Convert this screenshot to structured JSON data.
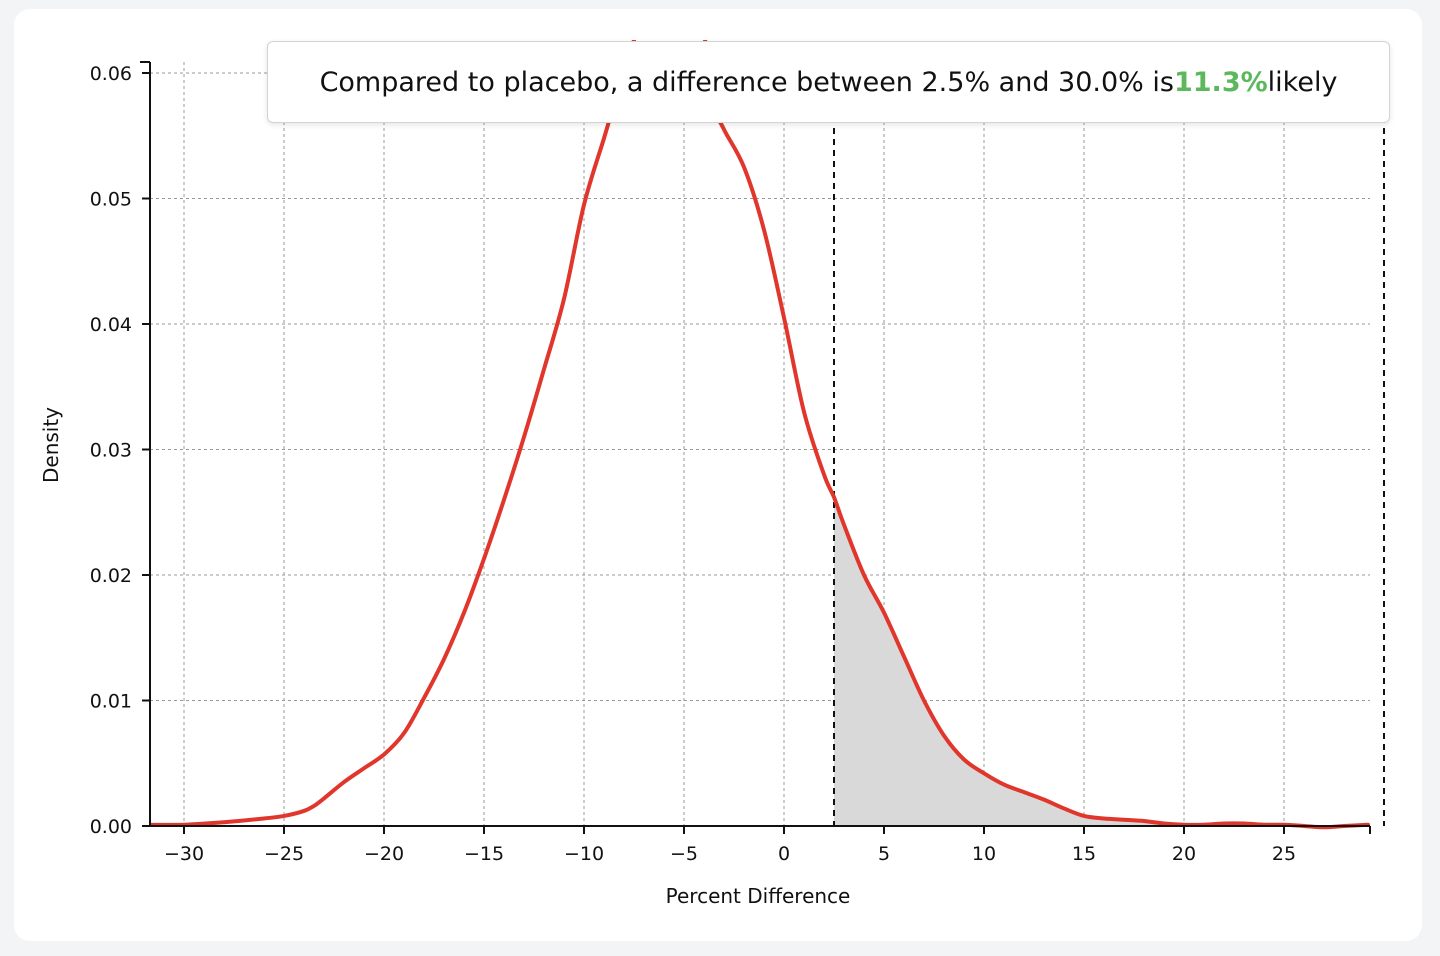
{
  "tooltip": {
    "prefix": "Compared to placebo, a difference between 2.5% and 30.0% is ",
    "value": "11.3%",
    "suffix": " likely",
    "value_color": "#5cb85c"
  },
  "chart_data": {
    "type": "area",
    "xlabel": "Percent Difference",
    "ylabel": "Density",
    "xlim": [
      -32,
      29.2
    ],
    "ylim": [
      0,
      0.061
    ],
    "x_ticks": [
      -30,
      -25,
      -20,
      -15,
      -10,
      -5,
      0,
      5,
      10,
      15,
      20,
      25
    ],
    "x_tick_labels": [
      "−30",
      "−25",
      "−20",
      "−15",
      "−10",
      "−5",
      "0",
      "5",
      "10",
      "15",
      "20",
      "25"
    ],
    "y_ticks": [
      0,
      0.01,
      0.02,
      0.03,
      0.04,
      0.05,
      0.06
    ],
    "y_tick_labels": [
      "0.00",
      "0.01",
      "0.02",
      "0.03",
      "0.04",
      "0.05",
      "0.06"
    ],
    "grid": true,
    "line_color": "#e0362c",
    "shade_color": "#d9d9d9",
    "shaded_range": [
      2.5,
      30.0
    ],
    "reference_lines": [
      2.5,
      30.0
    ],
    "series": [
      {
        "x": [
          -32,
          -30,
          -28,
          -26,
          -25,
          -24,
          -23.5,
          -23,
          -22,
          -21,
          -20,
          -19,
          -18,
          -17,
          -16,
          -15,
          -14,
          -13,
          -12,
          -11,
          -10,
          -9,
          -8.5,
          -8,
          -7,
          -6,
          -5,
          -4,
          -3.5,
          -3,
          -2,
          -1,
          0,
          1,
          2,
          2.5,
          3,
          4,
          5,
          6,
          7,
          8,
          9,
          10,
          11,
          12,
          13,
          14,
          15,
          16,
          17,
          18,
          19,
          20,
          21,
          22,
          23,
          24,
          25,
          26,
          27,
          28,
          29.2
        ],
        "y": [
          0.0001,
          0.0001,
          0.0003,
          0.0006,
          0.0008,
          0.0012,
          0.0016,
          0.0022,
          0.0035,
          0.0046,
          0.0057,
          0.0074,
          0.0102,
          0.0133,
          0.017,
          0.0213,
          0.026,
          0.031,
          0.0364,
          0.042,
          0.0495,
          0.0548,
          0.0575,
          0.06,
          0.065,
          0.068,
          0.067,
          0.063,
          0.0575,
          0.0555,
          0.0525,
          0.0475,
          0.0405,
          0.033,
          0.028,
          0.0262,
          0.024,
          0.02,
          0.017,
          0.0135,
          0.01,
          0.0072,
          0.0053,
          0.0042,
          0.0033,
          0.0027,
          0.0021,
          0.0014,
          0.0008,
          0.0006,
          0.0005,
          0.0004,
          0.0002,
          0.0001,
          0.0001,
          0.0002,
          0.0002,
          0.0001,
          0.0001,
          0.0,
          -0.0001,
          0.0,
          0.0001
        ]
      }
    ]
  }
}
